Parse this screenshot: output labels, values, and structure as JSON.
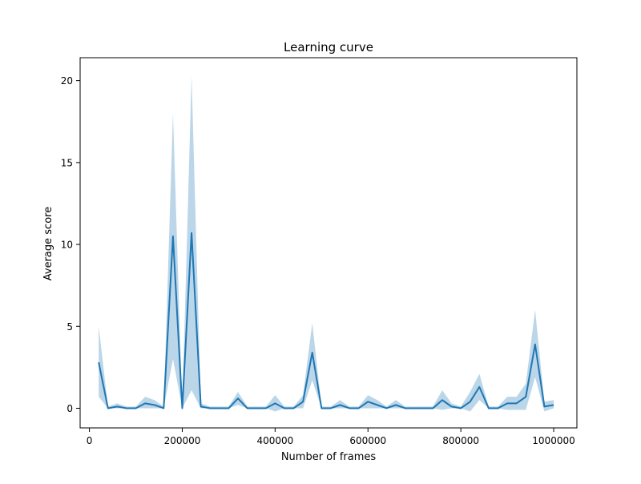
{
  "chart_data": {
    "type": "line",
    "title": "Learning curve",
    "xlabel": "Number of frames",
    "ylabel": "Average score",
    "xlim": [
      -20000,
      1050000
    ],
    "ylim": [
      -1.2,
      21.4
    ],
    "xticks": [
      0,
      200000,
      400000,
      600000,
      800000,
      1000000
    ],
    "xtick_labels": [
      "0",
      "200000",
      "400000",
      "600000",
      "800000",
      "1000000"
    ],
    "yticks": [
      0,
      5,
      10,
      15,
      20
    ],
    "ytick_labels": [
      "0",
      "5",
      "10",
      "15",
      "20"
    ],
    "grid": false,
    "colors": {
      "line": "#1f77b4",
      "band": "#1f77b4"
    },
    "x": [
      20000,
      40000,
      60000,
      80000,
      100000,
      120000,
      140000,
      160000,
      180000,
      200000,
      220000,
      240000,
      260000,
      280000,
      300000,
      320000,
      340000,
      360000,
      380000,
      400000,
      420000,
      440000,
      460000,
      480000,
      500000,
      520000,
      540000,
      560000,
      580000,
      600000,
      620000,
      640000,
      660000,
      680000,
      700000,
      720000,
      740000,
      760000,
      780000,
      800000,
      820000,
      840000,
      860000,
      880000,
      900000,
      920000,
      940000,
      960000,
      980000,
      1000000
    ],
    "series": [
      {
        "values": [
          2.8,
          0.0,
          0.1,
          0.0,
          0.0,
          0.3,
          0.2,
          0.0,
          10.5,
          0.0,
          10.7,
          0.1,
          0.0,
          0.0,
          0.0,
          0.6,
          0.0,
          0.0,
          0.0,
          0.3,
          0.0,
          0.0,
          0.4,
          3.4,
          0.0,
          0.0,
          0.2,
          0.0,
          0.0,
          0.4,
          0.2,
          0.0,
          0.2,
          0.0,
          0.0,
          0.0,
          0.0,
          0.5,
          0.1,
          0.0,
          0.4,
          1.3,
          0.0,
          0.0,
          0.3,
          0.3,
          0.7,
          3.9,
          0.1,
          0.2
        ],
        "upper": [
          5.0,
          0.1,
          0.3,
          0.1,
          0.1,
          0.7,
          0.5,
          0.1,
          18.0,
          0.1,
          20.3,
          0.3,
          0.1,
          0.1,
          0.1,
          1.0,
          0.1,
          0.1,
          0.1,
          0.8,
          0.1,
          0.1,
          0.8,
          5.2,
          0.1,
          0.1,
          0.5,
          0.1,
          0.1,
          0.8,
          0.5,
          0.1,
          0.5,
          0.1,
          0.1,
          0.1,
          0.1,
          1.1,
          0.3,
          0.1,
          1.0,
          2.1,
          0.1,
          0.1,
          0.7,
          0.7,
          1.5,
          6.0,
          0.4,
          0.5
        ],
        "lower": [
          0.7,
          0.0,
          0.0,
          0.0,
          0.0,
          0.0,
          0.0,
          0.0,
          3.0,
          0.0,
          1.1,
          0.0,
          0.0,
          0.0,
          0.0,
          0.2,
          0.0,
          0.0,
          0.0,
          -0.2,
          0.0,
          0.0,
          0.0,
          1.7,
          0.0,
          0.0,
          0.0,
          0.0,
          0.0,
          0.0,
          0.0,
          0.0,
          0.0,
          0.0,
          0.0,
          0.0,
          0.0,
          -0.1,
          0.0,
          0.0,
          -0.2,
          0.5,
          0.0,
          0.0,
          -0.1,
          -0.1,
          -0.1,
          1.9,
          -0.2,
          0.0
        ]
      }
    ]
  }
}
